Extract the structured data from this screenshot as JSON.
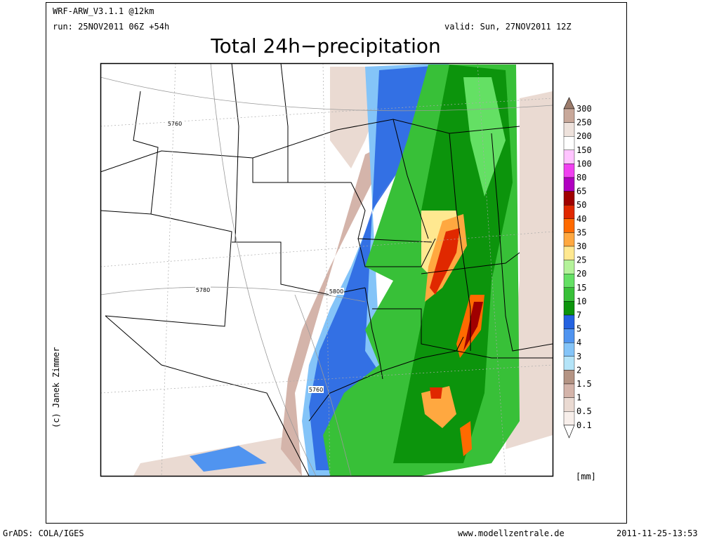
{
  "header": {
    "model": "WRF-ARW_V3.1.1 @12km",
    "run": "run: 25NOV2011 06Z +54h",
    "valid": "valid: Sun, 27NOV2011 12Z"
  },
  "title": "Total 24h−precipitation",
  "credit": "(c) Janek Zimmer",
  "contour_labels": [
    "5760",
    "5780",
    "5800",
    "5760"
  ],
  "legend": {
    "labels": [
      "300",
      "250",
      "200",
      "150",
      "100",
      "80",
      "65",
      "50",
      "40",
      "35",
      "30",
      "25",
      "20",
      "15",
      "10",
      "7",
      "5",
      "4",
      "3",
      "2",
      "1.5",
      "1",
      "0.5",
      "0.1"
    ],
    "colors": [
      "#9c7c6c",
      "#c8a89a",
      "#eee2dc",
      "#ffffff",
      "#ffc4ff",
      "#f040f0",
      "#b000c0",
      "#a00000",
      "#e02800",
      "#ff6a00",
      "#ffa840",
      "#ffe890",
      "#b4f29a",
      "#64e064",
      "#38c038",
      "#0c940c",
      "#2462e0",
      "#5094f0",
      "#84c4f8",
      "#b4e4f8",
      "#b49484",
      "#d4b4aa",
      "#eadad2",
      "#f8efeb",
      "#ffffff"
    ],
    "unit": "[mm]"
  },
  "footer": {
    "software": "GrADS: COLA/IGES",
    "website": "www.modellzentrale.de",
    "timestamp": "2011-11-25-13:53"
  }
}
